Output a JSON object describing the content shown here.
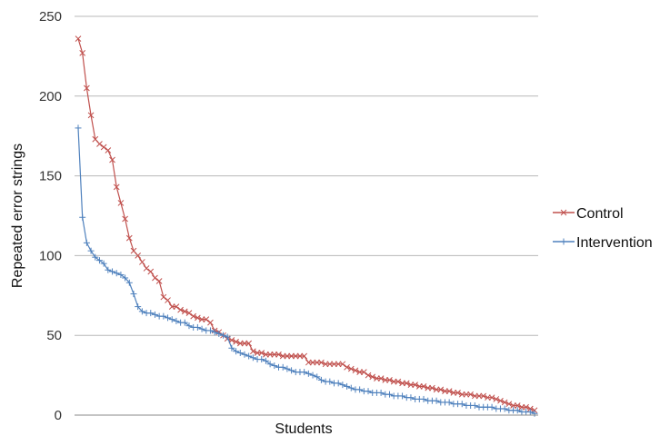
{
  "chart_data": {
    "type": "line",
    "title": "",
    "xlabel": "Students",
    "ylabel": "Repeated error strings",
    "ylim": [
      0,
      250
    ],
    "yticks": [
      0,
      50,
      100,
      150,
      200,
      250
    ],
    "grid": true,
    "legend_position": "right",
    "series": [
      {
        "name": "Control",
        "color": "#c0504d",
        "marker": "x-icon",
        "values": [
          236,
          227,
          205,
          188,
          173,
          170,
          168,
          166,
          160,
          143,
          133,
          123,
          111,
          103,
          100,
          96,
          92,
          90,
          86,
          84,
          74,
          72,
          68,
          68,
          66,
          65,
          64,
          62,
          61,
          60,
          60,
          58,
          53,
          52,
          50,
          48,
          47,
          46,
          45,
          45,
          45,
          40,
          39,
          39,
          38,
          38,
          38,
          38,
          37,
          37,
          37,
          37,
          37,
          37,
          33,
          33,
          33,
          33,
          32,
          32,
          32,
          32,
          32,
          30,
          29,
          28,
          27,
          27,
          25,
          24,
          23,
          23,
          22,
          22,
          21,
          21,
          20,
          20,
          19,
          19,
          18,
          18,
          17,
          17,
          16,
          16,
          15,
          15,
          14,
          14,
          13,
          13,
          13,
          12,
          12,
          12,
          11,
          11,
          10,
          9,
          8,
          7,
          6,
          6,
          5,
          5,
          4,
          3
        ]
      },
      {
        "name": "Intervention",
        "color": "#4f81bd",
        "marker": "plus-icon",
        "values": [
          180,
          124,
          108,
          103,
          99,
          97,
          95,
          91,
          90,
          89,
          88,
          86,
          83,
          76,
          68,
          65,
          64,
          64,
          63,
          62,
          62,
          61,
          60,
          59,
          58,
          58,
          56,
          55,
          55,
          54,
          53,
          53,
          52,
          51,
          50,
          49,
          42,
          40,
          39,
          38,
          37,
          36,
          35,
          35,
          34,
          32,
          31,
          30,
          30,
          29,
          28,
          27,
          27,
          27,
          26,
          25,
          24,
          22,
          21,
          21,
          20,
          20,
          19,
          18,
          17,
          16,
          16,
          15,
          15,
          14,
          14,
          14,
          13,
          13,
          12,
          12,
          12,
          11,
          11,
          10,
          10,
          10,
          9,
          9,
          9,
          8,
          8,
          8,
          7,
          7,
          7,
          6,
          6,
          6,
          5,
          5,
          5,
          5,
          4,
          4,
          4,
          3,
          3,
          3,
          2,
          2,
          2,
          1
        ]
      }
    ]
  }
}
